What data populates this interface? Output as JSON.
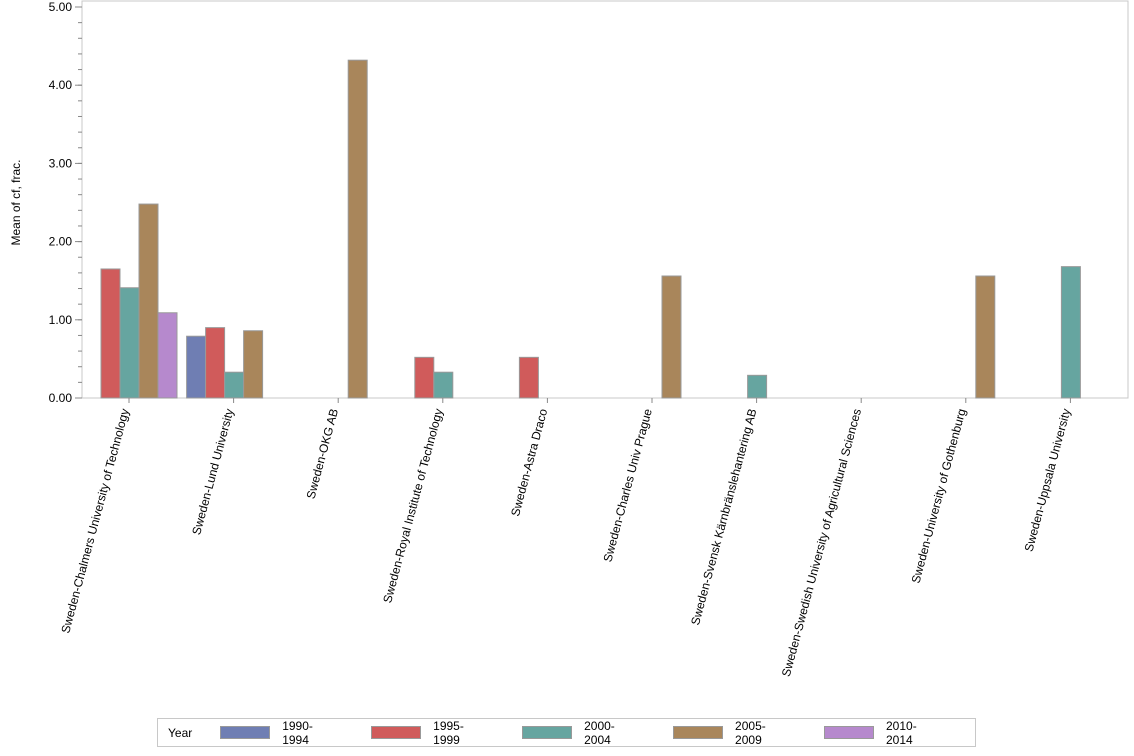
{
  "chart_data": {
    "type": "bar",
    "ylabel": "Mean of cf, frac.",
    "ylim": [
      0,
      5
    ],
    "yticks": [
      "0.00",
      "1.00",
      "2.00",
      "3.00",
      "4.00",
      "5.00"
    ],
    "categories": [
      "Sweden-Chalmers University of Technology",
      "Sweden-Lund University",
      "Sweden-OKG AB",
      "Sweden-Royal Institute of Technology",
      "Sweden-Astra Draco",
      "Sweden-Charles Univ Prague",
      "Sweden-Svensk Kärnbränslehantering AB",
      "Sweden-Swedish University of Agricultural Sciences",
      "Sweden-University of Gothenburg",
      "Sweden-Uppsala University"
    ],
    "legend_title": "Year",
    "legend_position": "bottom",
    "series": [
      {
        "name": "1990-1994",
        "color": "#6f7eb3",
        "values": [
          null,
          0.79,
          null,
          null,
          null,
          null,
          null,
          null,
          null,
          null
        ]
      },
      {
        "name": "1995-1999",
        "color": "#d05b5b",
        "values": [
          1.65,
          0.9,
          null,
          0.52,
          0.52,
          null,
          null,
          null,
          null,
          null
        ]
      },
      {
        "name": "2000-2004",
        "color": "#66a5a0",
        "values": [
          1.41,
          0.33,
          null,
          0.33,
          null,
          null,
          0.29,
          null,
          null,
          1.68
        ]
      },
      {
        "name": "2005-2009",
        "color": "#a9865b",
        "values": [
          2.48,
          0.86,
          4.32,
          null,
          null,
          1.56,
          null,
          null,
          1.56,
          null
        ]
      },
      {
        "name": "2010-2014",
        "color": "#b689cd",
        "values": [
          1.09,
          null,
          null,
          null,
          null,
          null,
          null,
          null,
          null,
          null
        ]
      }
    ]
  }
}
